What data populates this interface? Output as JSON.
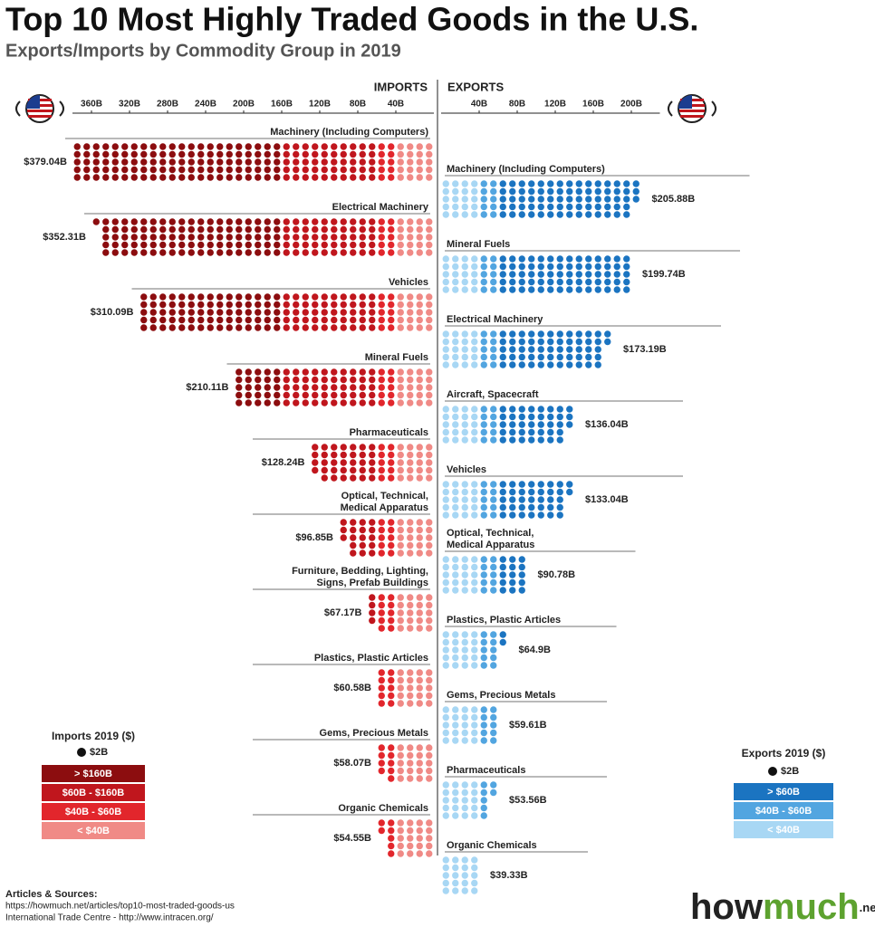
{
  "header": {
    "title": "Top 10 Most Highly Traded Goods in the U.S.",
    "subtitle": "Exports/Imports by Commodity Group in 2019"
  },
  "chart_data": [
    {
      "type": "dot",
      "title": "IMPORTS",
      "categories": [
        "Machinery (Including Computers)",
        "Electrical Machinery",
        "Vehicles",
        "Mineral Fuels",
        "Pharmaceuticals",
        [
          "Optical, Technical,",
          "Medical Apparatus"
        ],
        [
          "Furniture, Bedding, Lighting,",
          "Signs, Prefab Buildings"
        ],
        "Plastics, Plastic Articles",
        "Gems, Precious Metals",
        "Organic Chemicals"
      ],
      "values": [
        379.04,
        352.31,
        310.09,
        210.11,
        128.24,
        96.85,
        67.17,
        60.58,
        58.07,
        54.55
      ],
      "value_labels": [
        "$379.04B",
        "$352.31B",
        "$310.09B",
        "$210.11B",
        "$128.24B",
        "$96.85B",
        "$67.17B",
        "$60.58B",
        "$58.07B",
        "$54.55B"
      ],
      "xlim": [
        0,
        380
      ],
      "xticks": [
        {
          "value": 40,
          "label": "40B"
        },
        {
          "value": 80,
          "label": "80B"
        },
        {
          "value": 120,
          "label": "120B"
        },
        {
          "value": 160,
          "label": "160B"
        },
        {
          "value": 200,
          "label": "200B"
        },
        {
          "value": 240,
          "label": "240B"
        },
        {
          "value": 280,
          "label": "280B"
        },
        {
          "value": 320,
          "label": "320B"
        },
        {
          "value": 360,
          "label": "360B"
        }
      ],
      "legend": {
        "title": "Imports 2019 ($)",
        "unit": 2,
        "unit_label": "$2B",
        "bands": [
          {
            "label": "> $160B",
            "min": 160,
            "color": "#8c0d0f"
          },
          {
            "label": "$60B - $160B",
            "min": 60,
            "color": "#c0161d"
          },
          {
            "label": "$40B - $60B",
            "min": 40,
            "color": "#e2262c"
          },
          {
            "label": "< $40B",
            "min": 0,
            "color": "#f08a86"
          }
        ]
      }
    },
    {
      "type": "dot",
      "title": "EXPORTS",
      "categories": [
        "Machinery (Including Computers)",
        "Mineral Fuels",
        "Electrical Machinery",
        "Aircraft, Spacecraft",
        "Vehicles",
        [
          "Optical, Technical,",
          "Medical Apparatus"
        ],
        "Plastics, Plastic Articles",
        "Gems, Precious Metals",
        "Pharmaceuticals",
        "Organic Chemicals"
      ],
      "values": [
        205.88,
        199.74,
        173.19,
        136.04,
        133.04,
        90.78,
        64.9,
        59.61,
        53.56,
        39.33
      ],
      "value_labels": [
        "$205.88B",
        "$199.74B",
        "$173.19B",
        "$136.04B",
        "$133.04B",
        "$90.78B",
        "$64.9B",
        "$59.61B",
        "$53.56B",
        "$39.33B"
      ],
      "xlim": [
        0,
        230
      ],
      "xticks": [
        {
          "value": 40,
          "label": "40B"
        },
        {
          "value": 80,
          "label": "80B"
        },
        {
          "value": 120,
          "label": "120B"
        },
        {
          "value": 160,
          "label": "160B"
        },
        {
          "value": 200,
          "label": "200B"
        }
      ],
      "legend": {
        "title": "Exports 2019 ($)",
        "unit": 2,
        "unit_label": "$2B",
        "bands": [
          {
            "label": "> $60B",
            "min": 60,
            "color": "#1b74c1"
          },
          {
            "label": "$40B - $60B",
            "min": 40,
            "color": "#52a5e0"
          },
          {
            "label": "< $40B",
            "min": 0,
            "color": "#a8d7f4"
          }
        ]
      }
    }
  ],
  "sources": {
    "heading": "Articles & Sources:",
    "lines": [
      "https://howmuch.net/articles/top10-most-traded-goods-us",
      "International Trade Centre - http://www.intracen.org/"
    ]
  },
  "logo": {
    "main": "how",
    "accent": "much",
    "suffix": ".net"
  }
}
